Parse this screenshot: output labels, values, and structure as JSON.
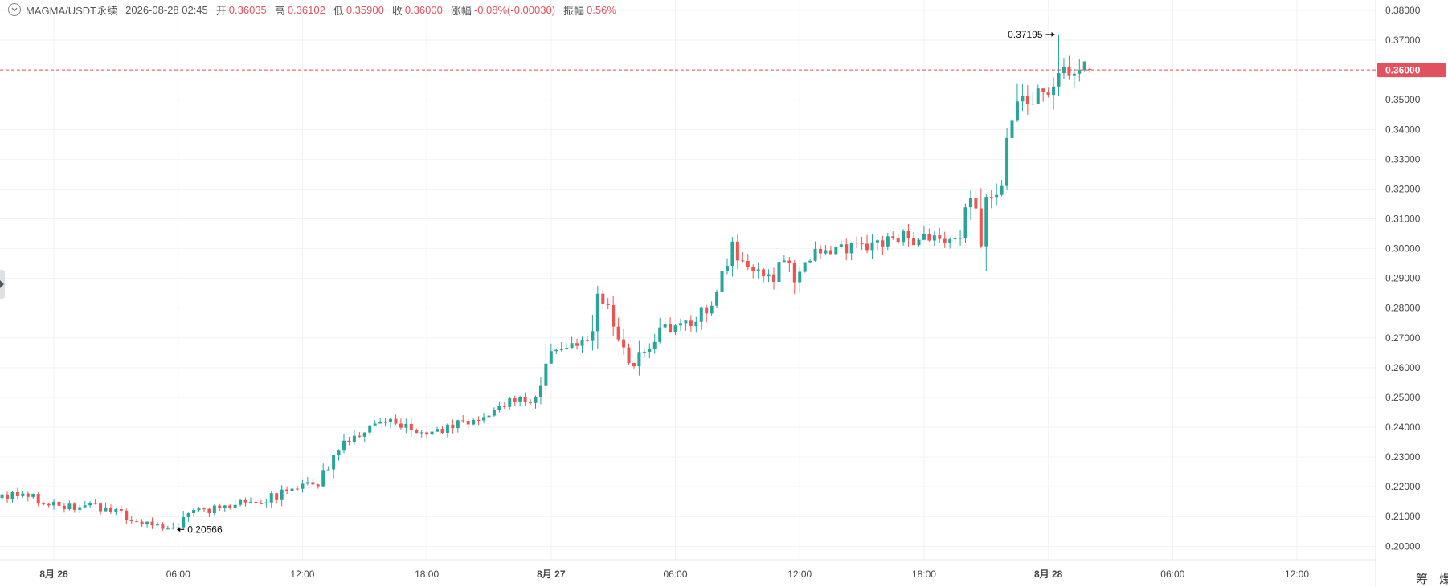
{
  "header": {
    "symbol": "MAGMA/USDT永续",
    "datetime": "2026-08-28 02:45",
    "open_label": "开",
    "open": "0.36035",
    "high_label": "高",
    "high": "0.36102",
    "low_label": "低",
    "low": "0.35900",
    "close_label": "收",
    "close": "0.36000",
    "change_label": "涨幅",
    "change": "-0.08%(-0.00030)",
    "amplitude_label": "振幅",
    "amplitude": "0.56%"
  },
  "footer": {
    "btn1": "筹",
    "btn2": "爆"
  },
  "colors": {
    "up": "#26a69a",
    "down": "#ef5350",
    "last_price": "#e0535e",
    "grid": "#f0f2f5",
    "axis_text": "#444444"
  },
  "chart_data": {
    "type": "candlestick",
    "title": "",
    "xlabel": "",
    "ylabel": "",
    "ylim": [
      0.1955,
      0.3835
    ],
    "y_ticks": [
      "0.20000",
      "0.21000",
      "0.22000",
      "0.23000",
      "0.24000",
      "0.25000",
      "0.26000",
      "0.27000",
      "0.28000",
      "0.29000",
      "0.30000",
      "0.31000",
      "0.32000",
      "0.33000",
      "0.34000",
      "0.35000",
      "0.36000",
      "0.37000",
      "0.38000"
    ],
    "x_ticks": [
      {
        "label": "8月 26",
        "t": 0
      },
      {
        "label": "06:00",
        "t": 6
      },
      {
        "label": "12:00",
        "t": 12
      },
      {
        "label": "18:00",
        "t": 18
      },
      {
        "label": "8月 27",
        "t": 24
      },
      {
        "label": "06:00",
        "t": 30
      },
      {
        "label": "12:00",
        "t": 36
      },
      {
        "label": "18:00",
        "t": 42
      },
      {
        "label": "8月 28",
        "t": 48
      },
      {
        "label": "06:00",
        "t": 54
      },
      {
        "label": "12:00",
        "t": 60
      }
    ],
    "x_range_hours": [
      -2.6,
      63.8
    ],
    "interval_hours": 0.25,
    "start_hour": -2.5,
    "last_price": "0.36000",
    "max_annotation": {
      "label": "0.37195",
      "value": 0.37195,
      "t": 48.5
    },
    "min_annotation": {
      "label": "0.20566",
      "value": 0.20566,
      "t": 5.75
    },
    "anchors": [
      [
        -2.5,
        0.2162
      ],
      [
        -1.5,
        0.2178
      ],
      [
        -0.5,
        0.2158
      ],
      [
        0,
        0.2138
      ],
      [
        1,
        0.2133
      ],
      [
        2,
        0.2132
      ],
      [
        3,
        0.2127
      ],
      [
        3.5,
        0.2108
      ],
      [
        4,
        0.2092
      ],
      [
        5,
        0.2075
      ],
      [
        5.75,
        0.206
      ],
      [
        6.5,
        0.2085
      ],
      [
        7,
        0.2115
      ],
      [
        8,
        0.2125
      ],
      [
        9,
        0.2148
      ],
      [
        10,
        0.215
      ],
      [
        11,
        0.2168
      ],
      [
        12,
        0.2195
      ],
      [
        13,
        0.2215
      ],
      [
        13.6,
        0.2268
      ],
      [
        14,
        0.234
      ],
      [
        15,
        0.238
      ],
      [
        16,
        0.242
      ],
      [
        16.5,
        0.244
      ],
      [
        17,
        0.241
      ],
      [
        17.5,
        0.2385
      ],
      [
        18,
        0.237
      ],
      [
        19,
        0.2395
      ],
      [
        20,
        0.2415
      ],
      [
        21,
        0.243
      ],
      [
        22,
        0.248
      ],
      [
        23,
        0.249
      ],
      [
        23.5,
        0.25
      ],
      [
        24,
        0.264
      ],
      [
        24.5,
        0.267
      ],
      [
        25,
        0.266
      ],
      [
        26,
        0.269
      ],
      [
        26.5,
        0.281
      ],
      [
        27,
        0.28
      ],
      [
        27.5,
        0.27
      ],
      [
        28,
        0.262
      ],
      [
        29,
        0.265
      ],
      [
        29.5,
        0.271
      ],
      [
        30,
        0.274
      ],
      [
        31,
        0.2755
      ],
      [
        32,
        0.28
      ],
      [
        32.5,
        0.29
      ],
      [
        33,
        0.299
      ],
      [
        33.5,
        0.296
      ],
      [
        34,
        0.293
      ],
      [
        35,
        0.29
      ],
      [
        35.5,
        0.296
      ],
      [
        36,
        0.288
      ],
      [
        36.5,
        0.296
      ],
      [
        37,
        0.2985
      ],
      [
        38,
        0.299
      ],
      [
        39,
        0.302
      ],
      [
        40,
        0.301
      ],
      [
        41,
        0.304
      ],
      [
        42,
        0.3025
      ],
      [
        43,
        0.304
      ],
      [
        43.5,
        0.301
      ],
      [
        44,
        0.305
      ],
      [
        44.5,
        0.316
      ],
      [
        45,
        0.301
      ],
      [
        45.5,
        0.321
      ],
      [
        46,
        0.32
      ],
      [
        46.5,
        0.347
      ],
      [
        47,
        0.352
      ],
      [
        47.5,
        0.348
      ],
      [
        48,
        0.353
      ],
      [
        48.5,
        0.3545
      ],
      [
        49,
        0.36
      ],
      [
        49.5,
        0.358
      ],
      [
        50,
        0.36
      ]
    ]
  }
}
